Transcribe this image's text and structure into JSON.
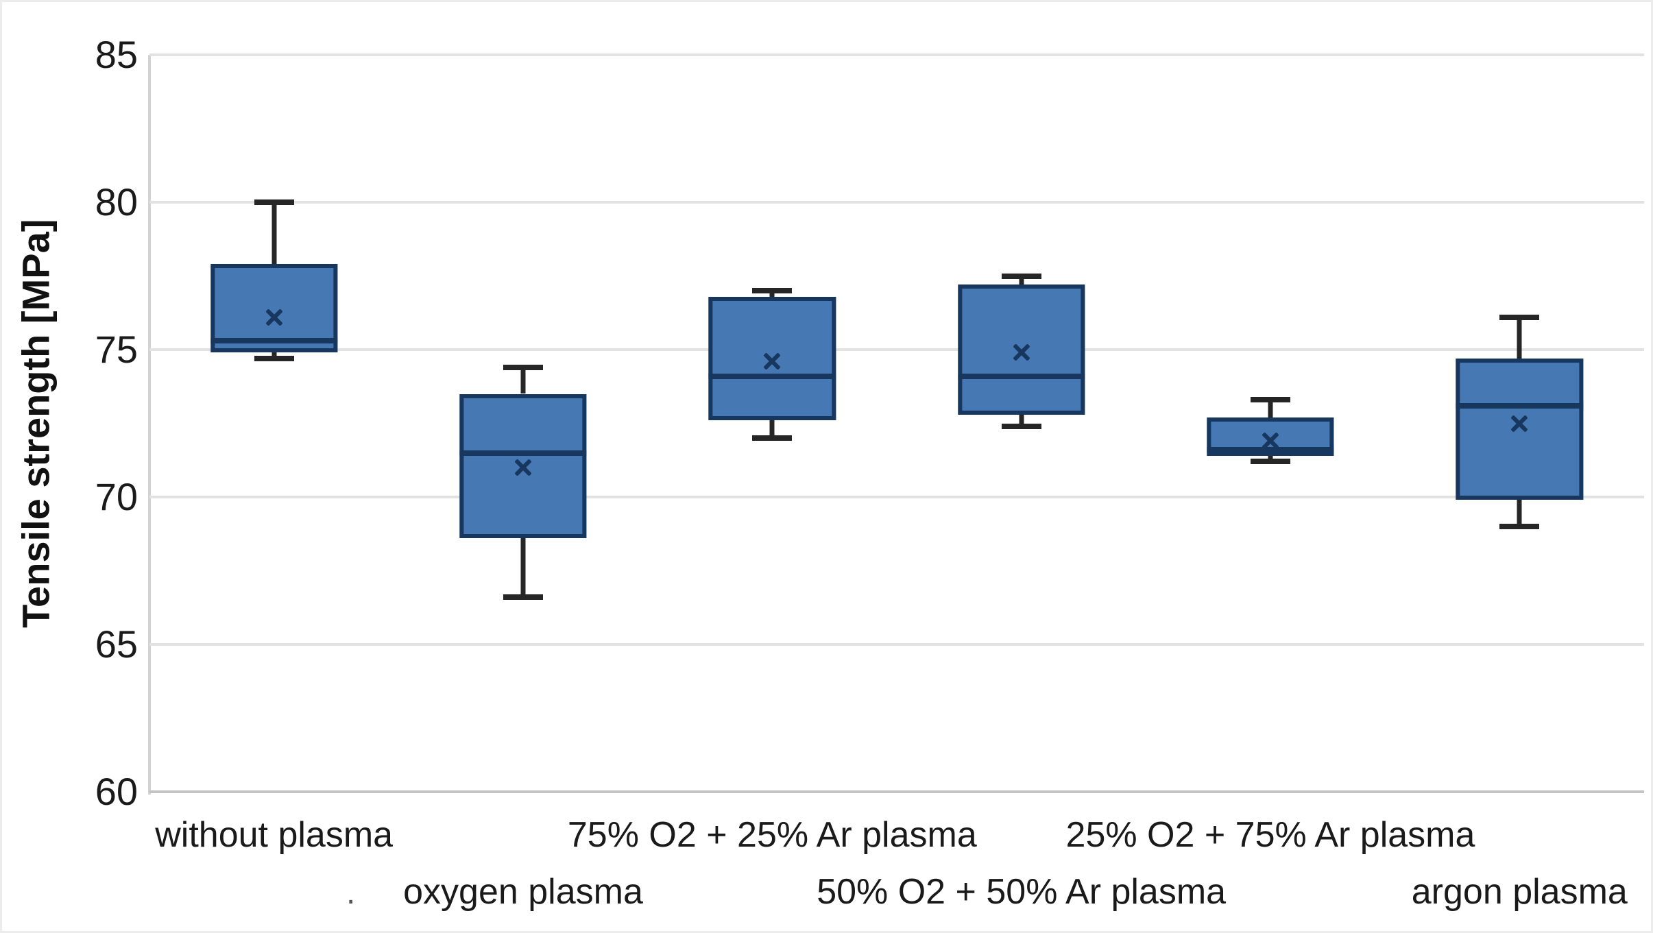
{
  "figure": {
    "background": "#ffffff",
    "frame_color": "#ececec",
    "stray_mark": "."
  },
  "chart_data": {
    "type": "boxplot",
    "title": "",
    "xlabel": "",
    "ylabel": "Tensile strength [MPa]",
    "ylim": [
      60,
      85
    ],
    "yticks": [
      60,
      65,
      70,
      75,
      80,
      85
    ],
    "grid": "horizontal-major",
    "legend": "none",
    "mean_marker": "x",
    "label_rows": [
      1,
      2,
      1,
      2,
      1,
      2
    ],
    "categories": [
      "without plasma",
      "oxygen plasma",
      "75% O2 + 25% Ar plasma",
      "50% O2 + 50% Ar plasma",
      "25% O2 + 75% Ar plasma",
      "argon plasma"
    ],
    "series": [
      {
        "category": "without plasma",
        "whisker_low": 74.7,
        "q1": 74.9,
        "median": 75.3,
        "mean": 76.1,
        "q3": 77.9,
        "whisker_high": 80.0
      },
      {
        "category": "oxygen plasma",
        "whisker_low": 66.6,
        "q1": 68.6,
        "median": 71.5,
        "mean": 71.0,
        "q3": 73.5,
        "whisker_high": 74.4
      },
      {
        "category": "75% O2 + 25% Ar plasma",
        "whisker_low": 72.0,
        "q1": 72.6,
        "median": 74.1,
        "mean": 74.6,
        "q3": 76.8,
        "whisker_high": 77.0
      },
      {
        "category": "50% O2 + 50% Ar plasma",
        "whisker_low": 72.4,
        "q1": 72.8,
        "median": 74.1,
        "mean": 74.9,
        "q3": 77.2,
        "whisker_high": 77.5
      },
      {
        "category": "25% O2 + 75% Ar plasma",
        "whisker_low": 71.2,
        "q1": 71.4,
        "median": 71.6,
        "mean": 71.9,
        "q3": 72.7,
        "whisker_high": 73.3
      },
      {
        "category": "argon plasma",
        "whisker_low": 69.0,
        "q1": 69.9,
        "median": 73.1,
        "mean": 72.5,
        "q3": 74.7,
        "whisker_high": 76.1
      }
    ],
    "colors": {
      "box_fill": "#4678b4",
      "box_border": "#17375e",
      "median": "#17375e",
      "mean_marker": "#17375e",
      "whisker": "#262626",
      "gridline": "#e2e2e2",
      "axis_line": "#c9c9c9",
      "text": "#1a1a1a"
    }
  }
}
